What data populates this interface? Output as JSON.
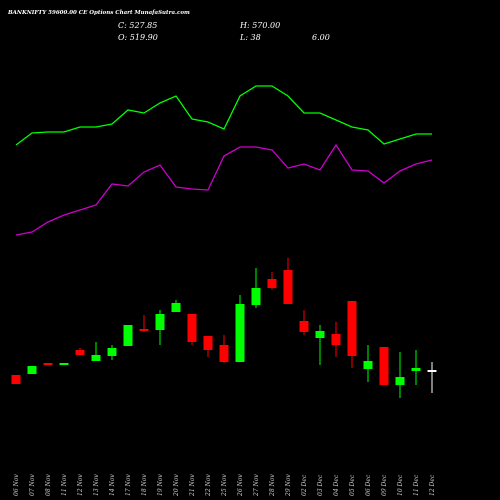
{
  "chart_data": {
    "type": "candlestick",
    "title": "BANKNIFTY 59600.00 CE Options  Chart MunafaSutra.com",
    "header": {
      "close": "C: 527.85",
      "open": "O: 519.90",
      "high": "H: 570.00",
      "low": "L: 38",
      "change": "6.00"
    },
    "categories": [
      "06 Nov",
      "07 Nov",
      "08 Nov",
      "11 Nov",
      "12 Nov",
      "13 Nov",
      "14 Nov",
      "17 Nov",
      "18 Nov",
      "19 Nov",
      "20 Nov",
      "21 Nov",
      "22 Nov",
      "25 Nov",
      "26 Nov",
      "27 Nov",
      "28 Nov",
      "29 Nov",
      "02 Dec",
      "03 Dec",
      "04 Dec",
      "05 Dec",
      "06 Dec",
      "09 Dec",
      "10 Dec",
      "11 Dec",
      "12 Dec"
    ],
    "open": [
      520.5,
      522,
      538.5,
      535.5,
      558,
      541.5,
      549,
      564,
      589.5,
      588,
      615,
      612,
      579,
      565.5,
      540,
      625.5,
      664.5,
      678,
      601.5,
      576,
      582,
      631.5,
      529.5,
      562.5,
      505.5,
      526.5,
      528
    ],
    "high": [
      520.5,
      534,
      538.5,
      538.5,
      561,
      570,
      565.5,
      595.5,
      610.5,
      618,
      633,
      612,
      579,
      580.5,
      640.5,
      681,
      675,
      696,
      618,
      595.5,
      600,
      631.5,
      565.5,
      562.5,
      555,
      558,
      540
    ],
    "low": [
      507,
      522,
      535.5,
      535.5,
      550.5,
      541.5,
      543,
      564,
      585,
      565.5,
      615,
      565.5,
      547.5,
      538.5,
      540,
      621,
      648,
      627,
      580.5,
      535.5,
      547.5,
      531,
      510,
      505.5,
      486,
      505.5,
      493.5
    ],
    "close": [
      507,
      534,
      535.5,
      538.5,
      550.5,
      550.5,
      561,
      595.5,
      586.5,
      612,
      628.5,
      570,
      558,
      540,
      627,
      651,
      651,
      627,
      585,
      586.5,
      565.5,
      549,
      541.5,
      505.5,
      517.5,
      531,
      528
    ],
    "up_color": "#00ff00",
    "down_color": "#ff0000",
    "flat_color": "#ffffff",
    "series": [
      {
        "color": "#00ff00",
        "values": [
          155,
          167,
          168,
          168,
          173,
          173,
          176,
          190,
          187,
          197,
          204,
          181,
          178,
          171,
          204,
          214,
          214,
          204,
          187,
          187,
          180,
          173,
          170,
          156,
          161,
          166,
          166
        ]
      },
      {
        "color": "#cc00cc",
        "values": [
          65,
          68,
          78,
          85,
          90,
          95,
          116,
          114,
          128,
          135,
          113,
          111,
          110,
          144,
          153,
          153,
          150,
          132,
          136,
          130,
          155,
          130,
          129,
          117,
          129,
          136,
          140
        ]
      }
    ]
  }
}
